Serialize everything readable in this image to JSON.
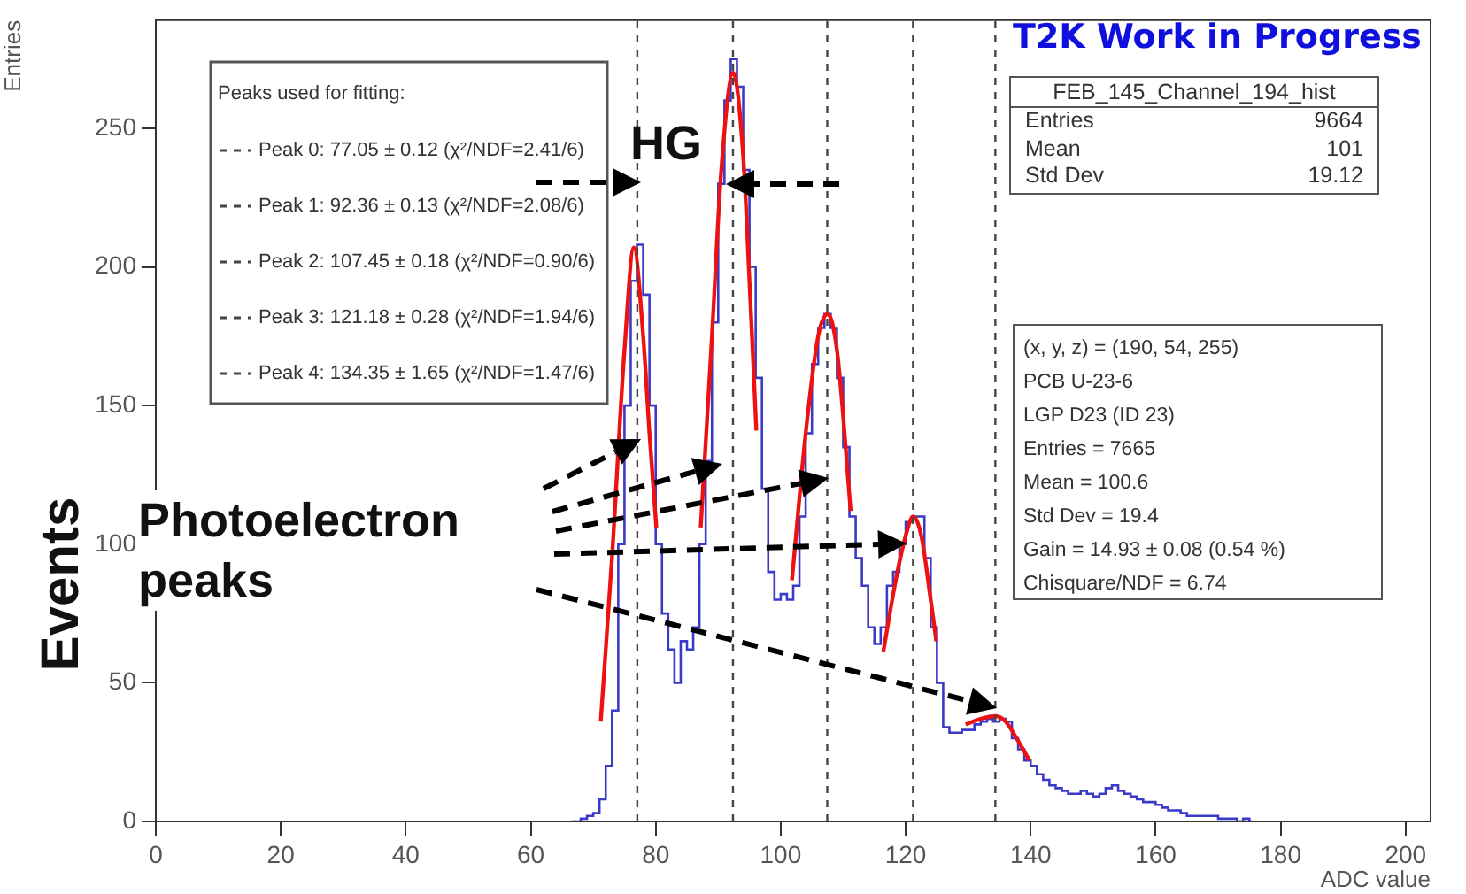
{
  "chart_data": {
    "type": "histogram",
    "xlabel": "ADC value",
    "ylabel": "Entries",
    "legend_title": "Peaks used for fitting:",
    "xlim": [
      0,
      204
    ],
    "xticks": [
      0,
      20,
      40,
      60,
      80,
      100,
      120,
      140,
      160,
      180,
      200
    ],
    "ylim": [
      0,
      289
    ],
    "yticks": [
      0,
      50,
      100,
      150,
      200,
      250
    ],
    "grid": false,
    "series": [
      {
        "type": "histogram",
        "color": "#3a3ac8",
        "bins": [
          66,
          67,
          68,
          69,
          70,
          71,
          72,
          73,
          74,
          75,
          76,
          77,
          78,
          79,
          80,
          81,
          82,
          83,
          84,
          85,
          86,
          87,
          88,
          89,
          90,
          91,
          92,
          93,
          94,
          95,
          96,
          97,
          98,
          99,
          100,
          101,
          102,
          103,
          104,
          105,
          106,
          107,
          108,
          109,
          110,
          111,
          112,
          113,
          114,
          115,
          116,
          117,
          118,
          119,
          120,
          121,
          122,
          123,
          124,
          125,
          126,
          127,
          128,
          129,
          130,
          131,
          132,
          133,
          134,
          135,
          136,
          137,
          138,
          139,
          140,
          141,
          142,
          143,
          144,
          145,
          146,
          147,
          148,
          149,
          150,
          151,
          152,
          153,
          154,
          155,
          156,
          157,
          158,
          159,
          160,
          161,
          162,
          163,
          164,
          165,
          166,
          167,
          168,
          169,
          170,
          171,
          172,
          173,
          174,
          175,
          176
        ],
        "values": [
          0,
          0,
          1,
          2,
          3,
          8,
          20,
          40,
          100,
          150,
          195,
          208,
          190,
          150,
          100,
          75,
          62,
          50,
          65,
          62,
          70,
          100,
          130,
          180,
          230,
          260,
          275,
          265,
          235,
          200,
          160,
          120,
          90,
          80,
          82,
          80,
          85,
          110,
          140,
          165,
          178,
          183,
          178,
          160,
          135,
          110,
          95,
          85,
          70,
          64,
          70,
          85,
          90,
          100,
          108,
          110,
          110,
          95,
          70,
          50,
          34,
          32,
          32,
          33,
          33,
          35,
          36,
          37,
          36,
          37,
          36,
          30,
          26,
          22,
          20,
          17,
          15,
          13,
          12,
          11,
          10,
          10,
          11,
          10,
          9,
          10,
          12,
          13,
          11,
          10,
          9,
          8,
          7,
          7,
          6,
          5,
          4,
          4,
          3,
          2,
          2,
          2,
          2,
          2,
          1,
          1,
          1,
          0,
          1,
          0
        ]
      },
      {
        "type": "line",
        "color": "#ee1111",
        "x": [
          71.2,
          73,
          75,
          76.5,
          78,
          79,
          80.1
        ],
        "values": [
          36,
          95,
          170,
          207,
          175,
          140,
          106
        ]
      },
      {
        "type": "line",
        "color": "#ee1111",
        "x": [
          87.2,
          89,
          90.5,
          92.4,
          94,
          95,
          96.1
        ],
        "values": [
          106,
          175,
          235,
          270,
          240,
          195,
          141
        ]
      },
      {
        "type": "line",
        "color": "#ee1111",
        "x": [
          101.8,
          104,
          106,
          107.5,
          109,
          111.2
        ],
        "values": [
          87,
          140,
          175,
          183,
          170,
          112
        ]
      },
      {
        "type": "line",
        "color": "#ee1111",
        "x": [
          116.4,
          118.5,
          120,
          121.2,
          122.5,
          124,
          124.9
        ],
        "values": [
          61,
          88,
          103,
          110,
          103,
          80,
          65
        ]
      },
      {
        "type": "line",
        "color": "#ee1111",
        "x": [
          129.6,
          132,
          134.4,
          136,
          138,
          139.8
        ],
        "values": [
          35,
          37,
          38,
          36,
          29,
          22
        ]
      }
    ],
    "ref_lines": [
      {
        "axis": "x",
        "value": 77.05,
        "color": "#444444",
        "line_style": "dashed"
      },
      {
        "axis": "x",
        "value": 92.36,
        "color": "#444444",
        "line_style": "dashed"
      },
      {
        "axis": "x",
        "value": 107.45,
        "color": "#444444",
        "line_style": "dashed"
      },
      {
        "axis": "x",
        "value": 121.18,
        "color": "#444444",
        "line_style": "dashed"
      },
      {
        "axis": "x",
        "value": 134.35,
        "color": "#444444",
        "line_style": "dashed"
      }
    ],
    "annotations": [
      "T2K Work in Progress",
      "FEB_145_Channel_194_hist",
      "Entries",
      "9664",
      "Mean",
      "101",
      "Std Dev",
      "19.12",
      "(x, y, z) = (190, 54, 255)",
      "PCB U-23-6",
      "LGP D23 (ID 23)",
      "Entries = 7665",
      "Mean = 100.6",
      "Std Dev = 19.4",
      "Gain = 14.93 ± 0.08 (0.54 %)",
      "Chisquare/NDF = 6.74",
      "HG",
      "Photoelectron peaks",
      "Events",
      "Peak 0: 77.05 ± 0.12 (χ²/NDF=2.41/6)",
      "Peak 1: 92.36 ± 0.13 (χ²/NDF=2.08/6)",
      "Peak 2: 107.45 ± 0.18 (χ²/NDF=0.90/6)",
      "Peak 3: 121.18 ± 0.28 (χ²/NDF=1.94/6)",
      "Peak 4: 134.35 ± 1.65 (χ²/NDF=1.47/6)"
    ]
  }
}
